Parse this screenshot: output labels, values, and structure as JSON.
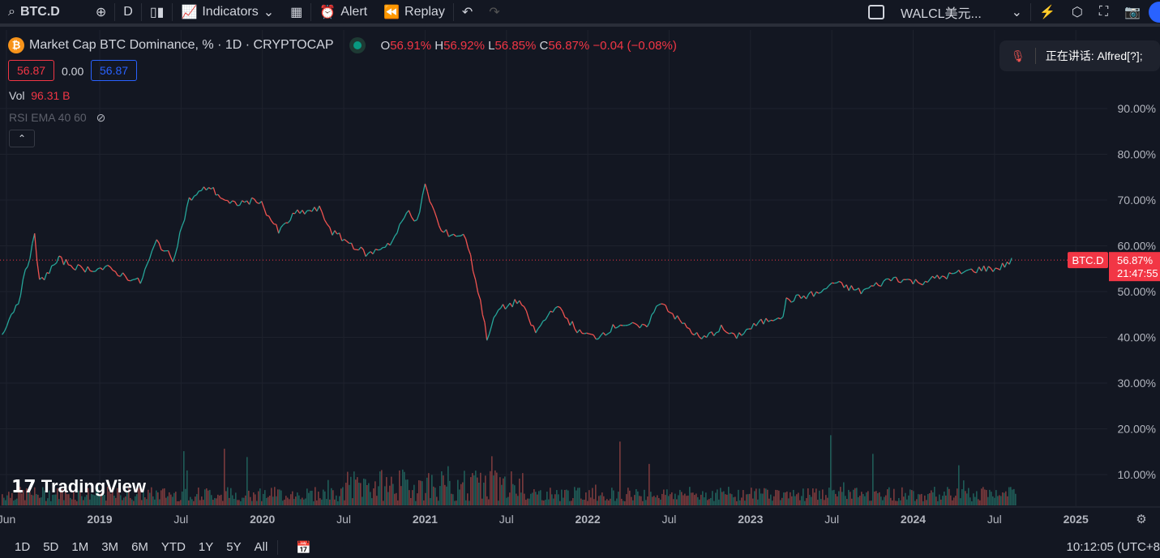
{
  "toolbar": {
    "symbol": "BTC.D",
    "interval": "D",
    "indicators": "Indicators",
    "alert": "Alert",
    "replay": "Replay",
    "layout_name": "WALCL美元..."
  },
  "legend": {
    "title": "Market Cap BTC Dominance, % · 1D · CRYPTOCAP",
    "o_label": "O",
    "o": "56.91%",
    "h_label": "H",
    "h": "56.92%",
    "l_label": "L",
    "l": "56.85%",
    "c_label": "C",
    "c": "56.87%",
    "change": "−0.04 (−0.08%)",
    "bid": "56.87",
    "spread": "0.00",
    "ask": "56.87",
    "vol_label": "Vol",
    "vol": "96.31 B",
    "rsi": "RSI EMA 40 60"
  },
  "toast": {
    "text": "正在讲话: Alfred[?];"
  },
  "price_label": {
    "symbol": "BTC.D",
    "value": "56.87%",
    "countdown": "21:47:55"
  },
  "watermark": "TradingView",
  "bottom": {
    "ranges": [
      "1D",
      "5D",
      "1M",
      "3M",
      "6M",
      "YTD",
      "1Y",
      "5Y",
      "All"
    ],
    "time": "10:12:05 (UTC+8"
  },
  "colors": {
    "up": "#26a69a",
    "down": "#ef5350",
    "accent": "#f23645"
  },
  "chart_data": {
    "type": "line",
    "title": "Market Cap BTC Dominance, %",
    "ylim": [
      0,
      100
    ],
    "yticks": [
      "90.00%",
      "80.00%",
      "70.00%",
      "60.00%",
      "50.00%",
      "40.00%",
      "30.00%",
      "20.00%",
      "10.00%"
    ],
    "ytick_values": [
      90,
      80,
      70,
      60,
      50,
      40,
      30,
      20,
      10
    ],
    "xticks": [
      "Jun",
      "2019",
      "Jul",
      "2020",
      "Jul",
      "2021",
      "Jul",
      "2022",
      "Jul",
      "2023",
      "Jul",
      "2024",
      "Jul",
      "2025"
    ],
    "xtick_values": [
      2018.42,
      2019,
      2019.5,
      2020,
      2020.5,
      2021,
      2021.5,
      2022,
      2022.5,
      2023,
      2023.5,
      2024,
      2024.5,
      2025
    ],
    "last": 56.87,
    "points": [
      [
        2018.4,
        41
      ],
      [
        2018.5,
        48
      ],
      [
        2018.6,
        62
      ],
      [
        2018.63,
        52
      ],
      [
        2018.75,
        57
      ],
      [
        2018.88,
        55
      ],
      [
        2019.05,
        55
      ],
      [
        2019.25,
        52
      ],
      [
        2019.35,
        61
      ],
      [
        2019.45,
        57
      ],
      [
        2019.55,
        70
      ],
      [
        2019.67,
        73
      ],
      [
        2019.8,
        69
      ],
      [
        2019.98,
        70
      ],
      [
        2020.1,
        63
      ],
      [
        2020.2,
        67
      ],
      [
        2020.35,
        68
      ],
      [
        2020.43,
        63
      ],
      [
        2020.65,
        58
      ],
      [
        2020.8,
        61
      ],
      [
        2020.9,
        68
      ],
      [
        2020.95,
        65
      ],
      [
        2021.0,
        73
      ],
      [
        2021.1,
        63
      ],
      [
        2021.25,
        62
      ],
      [
        2021.34,
        48
      ],
      [
        2021.38,
        40
      ],
      [
        2021.45,
        46
      ],
      [
        2021.58,
        48
      ],
      [
        2021.68,
        41
      ],
      [
        2021.8,
        47
      ],
      [
        2021.95,
        41
      ],
      [
        2022.05,
        40
      ],
      [
        2022.2,
        43
      ],
      [
        2022.35,
        42
      ],
      [
        2022.45,
        48
      ],
      [
        2022.55,
        44
      ],
      [
        2022.7,
        39.5
      ],
      [
        2022.82,
        42
      ],
      [
        2022.9,
        40
      ],
      [
        2023.05,
        43
      ],
      [
        2023.2,
        45
      ],
      [
        2023.22,
        48
      ],
      [
        2023.45,
        50
      ],
      [
        2023.5,
        52
      ],
      [
        2023.68,
        50
      ],
      [
        2023.88,
        53
      ],
      [
        2024.03,
        52
      ],
      [
        2024.28,
        54
      ],
      [
        2024.42,
        55
      ],
      [
        2024.52,
        55
      ],
      [
        2024.62,
        57
      ]
    ]
  }
}
